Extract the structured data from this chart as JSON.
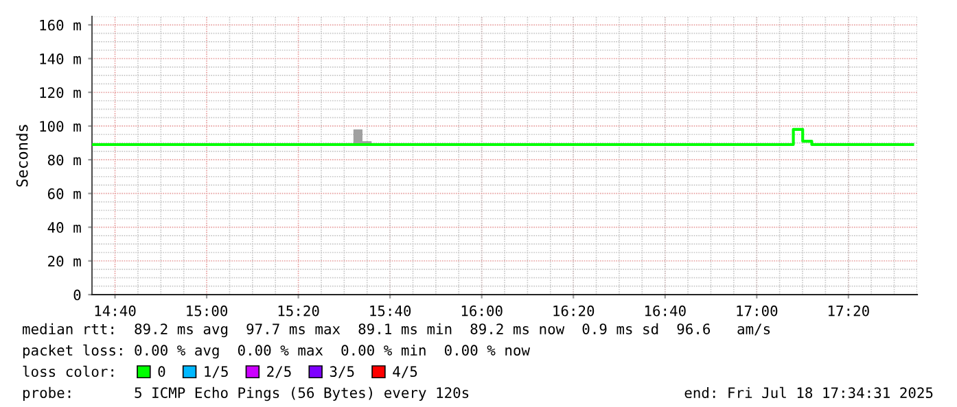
{
  "chart_data": {
    "type": "step",
    "ylabel": "Seconds",
    "xlim": [
      14.583,
      17.5833
    ],
    "xticks": [
      {
        "value": 14.6667,
        "label": "14:40"
      },
      {
        "value": 15.0,
        "label": "15:00"
      },
      {
        "value": 15.3333,
        "label": "15:20"
      },
      {
        "value": 15.6667,
        "label": "15:40"
      },
      {
        "value": 16.0,
        "label": "16:00"
      },
      {
        "value": 16.3333,
        "label": "16:20"
      },
      {
        "value": 16.6667,
        "label": "16:40"
      },
      {
        "value": 17.0,
        "label": "17:00"
      },
      {
        "value": 17.3333,
        "label": "17:20"
      }
    ],
    "ylim": [
      0,
      165
    ],
    "yticks": [
      0,
      {
        "value": 20,
        "label": "20 m"
      },
      {
        "value": 40,
        "label": "40 m"
      },
      {
        "value": 60,
        "label": "60 m"
      },
      {
        "value": 80,
        "label": "80 m"
      },
      {
        "value": 100,
        "label": "100 m"
      },
      {
        "value": 120,
        "label": "120 m"
      },
      {
        "value": 140,
        "label": "140 m"
      },
      {
        "value": 160,
        "label": "160 m"
      }
    ],
    "grid": true,
    "legend": "bottom left",
    "legend_title": "loss color:",
    "series": [
      {
        "name": "0",
        "color": "#00ff00",
        "x": [
          14.583,
          15.533,
          15.567,
          15.6,
          17.133,
          17.167,
          17.2,
          17.567
        ],
        "values": [
          89,
          89,
          89,
          89,
          98,
          91,
          89,
          89
        ]
      },
      {
        "type": "bar",
        "color": "#a0a0a0",
        "x": [
          15.55,
          15.583
        ],
        "base": [
          89,
          89
        ],
        "values": [
          9,
          2
        ]
      },
      {
        "name": "1/5",
        "color": "#00b8ff"
      },
      {
        "name": "2/5",
        "color": "#cc00ff"
      },
      {
        "name": "3/5",
        "color": "#7e00ff"
      },
      {
        "name": "4/5",
        "color": "#ff0000"
      }
    ],
    "annotations": [
      "median rtt:  89.2 ms avg  97.7 ms max  89.1 ms min  89.2 ms now  0.9 ms sd  96.6   am/s",
      "packet loss: 0.00 % avg  0.00 % max  0.00 % min  0.00 % now",
      "probe:       5 ICMP Echo Pings (56 Bytes) every 120s",
      "end: Fri Jul 18 17:34:31 2025"
    ]
  }
}
